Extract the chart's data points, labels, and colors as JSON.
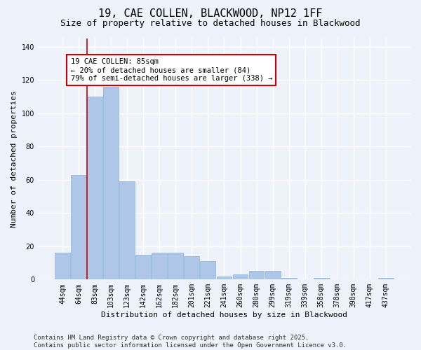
{
  "title": "19, CAE COLLEN, BLACKWOOD, NP12 1FF",
  "subtitle": "Size of property relative to detached houses in Blackwood",
  "xlabel": "Distribution of detached houses by size in Blackwood",
  "ylabel": "Number of detached properties",
  "categories": [
    "44sqm",
    "64sqm",
    "83sqm",
    "103sqm",
    "123sqm",
    "142sqm",
    "162sqm",
    "182sqm",
    "201sqm",
    "221sqm",
    "241sqm",
    "260sqm",
    "280sqm",
    "299sqm",
    "319sqm",
    "339sqm",
    "358sqm",
    "378sqm",
    "398sqm",
    "417sqm",
    "437sqm"
  ],
  "values": [
    16,
    63,
    110,
    116,
    59,
    15,
    16,
    16,
    14,
    11,
    2,
    3,
    5,
    5,
    1,
    0,
    1,
    0,
    0,
    0,
    1
  ],
  "bar_color": "#aec6e8",
  "bar_edgecolor": "#8ab4d8",
  "vline_color": "#cc0000",
  "annotation_text": "19 CAE COLLEN: 85sqm\n← 20% of detached houses are smaller (84)\n79% of semi-detached houses are larger (338) →",
  "ylim": [
    0,
    145
  ],
  "yticks": [
    0,
    20,
    40,
    60,
    80,
    100,
    120,
    140
  ],
  "footer": "Contains HM Land Registry data © Crown copyright and database right 2025.\nContains public sector information licensed under the Open Government Licence v3.0.",
  "background_color": "#eef2fb",
  "plot_background": "#eef2fb",
  "grid_color": "#ffffff",
  "title_fontsize": 11,
  "subtitle_fontsize": 9,
  "axis_label_fontsize": 8,
  "tick_fontsize": 7,
  "annotation_fontsize": 7.5,
  "footer_fontsize": 6.5
}
